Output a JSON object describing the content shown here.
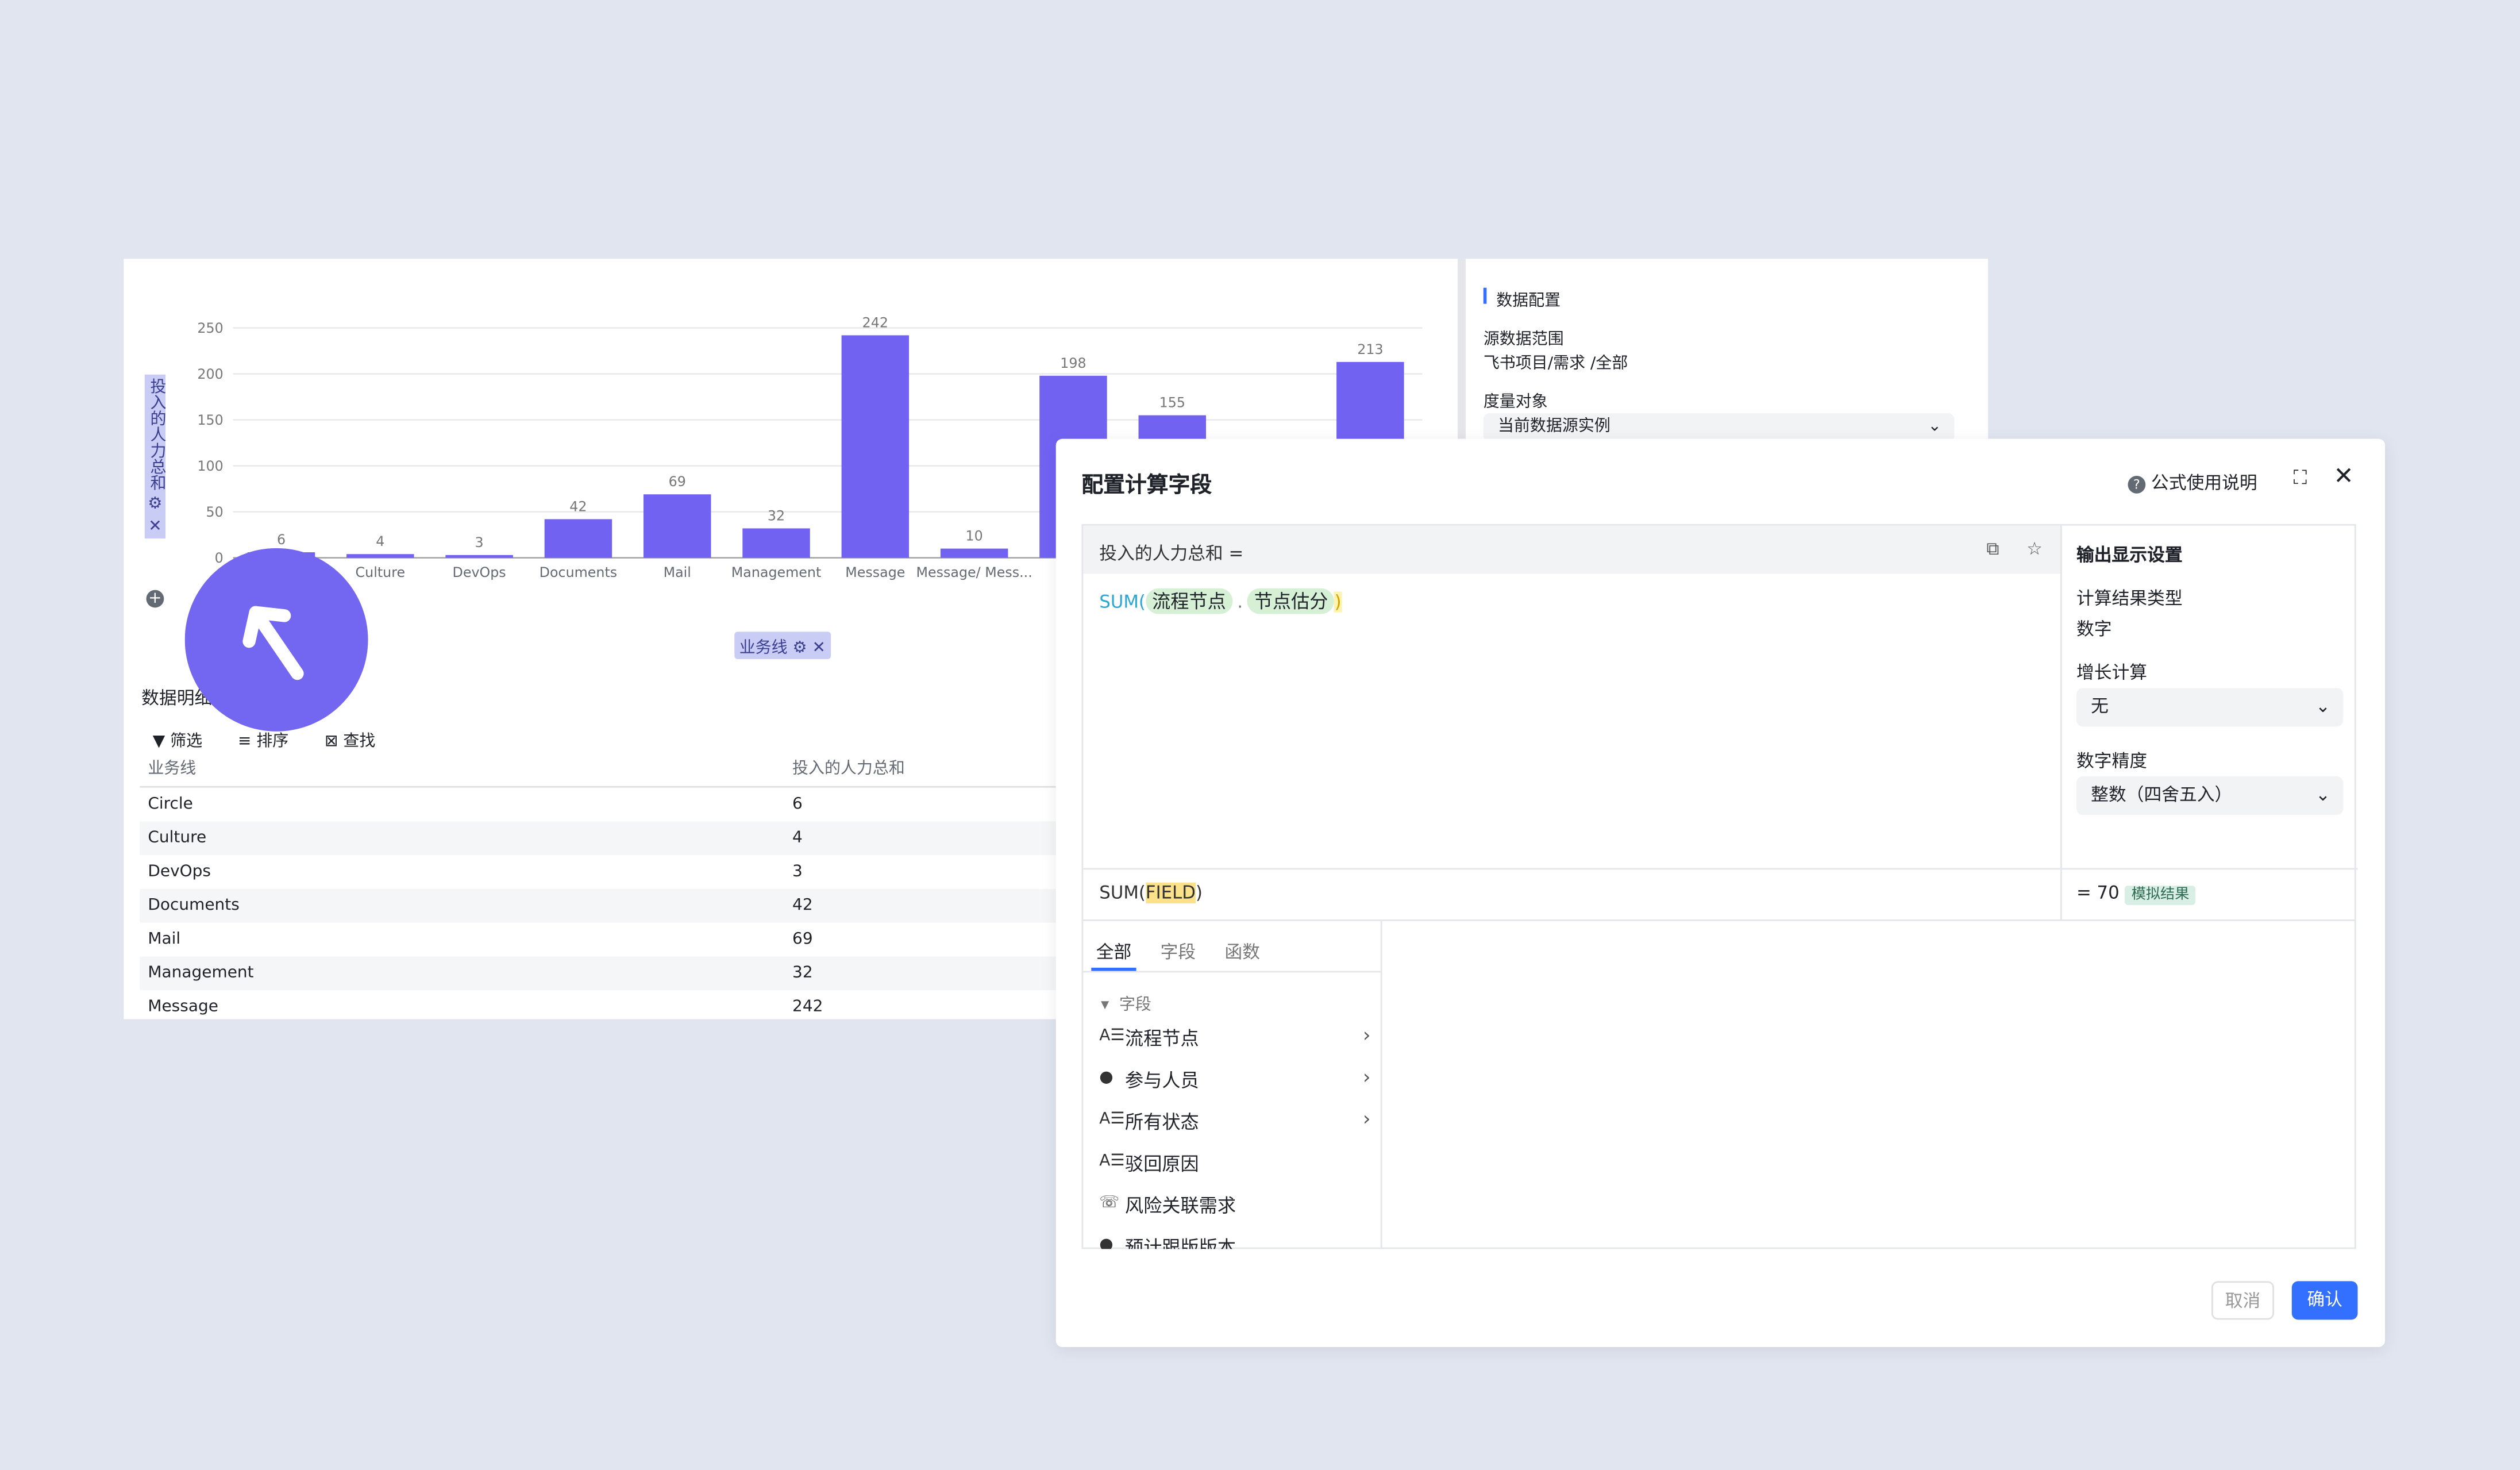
{
  "chart_data": {
    "type": "bar",
    "y_label": "投入的人力总和",
    "x_label": "业务线",
    "categories": [
      "Circle",
      "Culture",
      "DevOps",
      "Documents",
      "Mail",
      "Management",
      "Message",
      "Message/ Mess...",
      null,
      null,
      null,
      null
    ],
    "values": [
      6,
      4,
      3,
      42,
      69,
      32,
      242,
      10,
      198,
      155,
      null,
      213
    ],
    "color": "#7262f2",
    "ylim": [
      0,
      250
    ],
    "yticks": [
      0,
      50,
      100,
      150,
      200,
      250
    ],
    "grid": true
  },
  "table": {
    "title": "数据明细",
    "toolbar": [
      "筛选",
      "排序",
      "查找"
    ],
    "columns": [
      "业务线",
      "投入的人力总和"
    ],
    "rows": [
      [
        "Circle",
        6
      ],
      [
        "Culture",
        4
      ],
      [
        "DevOps",
        3
      ],
      [
        "Documents",
        42
      ],
      [
        "Mail",
        69
      ],
      [
        "Management",
        32
      ],
      [
        "Message",
        242
      ]
    ]
  },
  "config_panel": {
    "title": "数据配置",
    "source_label": "源数据范围",
    "source_value": "飞书项目/需求 /全部",
    "measure_label": "度量对象",
    "measure_value": "当前数据源实例"
  },
  "dialog": {
    "title": "配置计算字段",
    "help": "公式使用说明",
    "formula_target": "投入的人力总和 =",
    "formula_fn": "SUM(",
    "formula_field1": "流程节点",
    "formula_sep": ".",
    "formula_field2": "节点估分",
    "formula_close": ")",
    "signature_fn": "SUM(",
    "signature_arg": "FIELD",
    "signature_close": ")",
    "output": {
      "title": "输出显示设置",
      "type_label": "计算结果类型",
      "type_value": "数字",
      "growth_label": "增长计算",
      "growth_value": "无",
      "precision_label": "数字精度",
      "precision_value": "整数（四舍五入）",
      "result": "= 70",
      "result_tag": "模拟结果"
    },
    "tabs": [
      "全部",
      "字段",
      "函数"
    ],
    "tree_group": "字段",
    "fields": [
      "流程节点",
      "参与人员",
      "所有状态",
      "驳回原因",
      "风险关联需求",
      "预计跟版版本"
    ],
    "cancel": "取消",
    "confirm": "确认"
  }
}
